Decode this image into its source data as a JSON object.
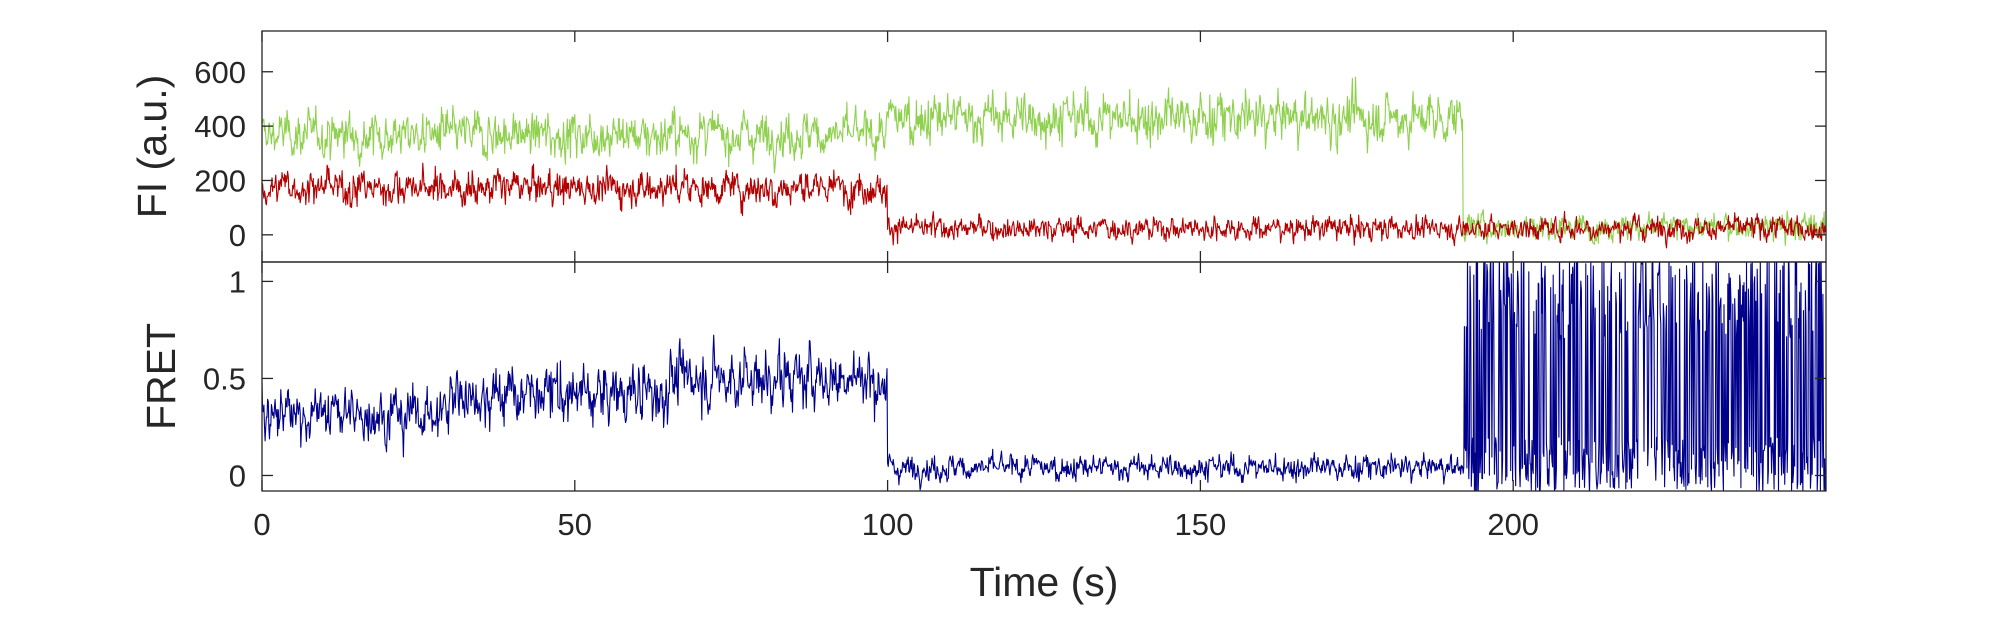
{
  "chart_data": [
    {
      "type": "line",
      "panel": "top",
      "ylabel": "FI (a.u.)",
      "xlim": [
        0,
        250
      ],
      "ylim": [
        -100,
        750
      ],
      "yticks": [
        0,
        200,
        400,
        600
      ],
      "ytick_labels": [
        "0",
        "200",
        "400",
        "600"
      ],
      "grid": false,
      "series": [
        {
          "color": "#8fd14f",
          "segments": [
            {
              "t_start": 0,
              "t_end": 100,
              "mean": 370,
              "noise": 75
            },
            {
              "t_start": 100,
              "t_end": 192,
              "mean": 430,
              "noise": 85
            },
            {
              "t_start": 192,
              "t_end": 250,
              "mean": 30,
              "noise": 45
            }
          ]
        },
        {
          "color": "#b30000",
          "segments": [
            {
              "t_start": 0,
              "t_end": 100,
              "mean": 175,
              "noise": 60
            },
            {
              "t_start": 100,
              "t_end": 192,
              "mean": 25,
              "noise": 40
            },
            {
              "t_start": 192,
              "t_end": 250,
              "mean": 25,
              "noise": 40
            }
          ]
        }
      ]
    },
    {
      "type": "line",
      "panel": "bottom",
      "xlabel": "Time (s)",
      "ylabel": "FRET",
      "xlim": [
        0,
        250
      ],
      "ylim": [
        -0.08,
        1.1
      ],
      "xticks": [
        0,
        50,
        100,
        150,
        200
      ],
      "xtick_labels": [
        "0",
        "50",
        "100",
        "150",
        "200"
      ],
      "yticks": [
        0,
        0.5,
        1
      ],
      "ytick_labels": [
        "0",
        "0.5",
        "1"
      ],
      "grid": false,
      "series": [
        {
          "color": "#00008b",
          "segments": [
            {
              "t_start": 0,
              "t_end": 30,
              "mean": 0.32,
              "noise": 0.12
            },
            {
              "t_start": 30,
              "t_end": 65,
              "mean": 0.42,
              "noise": 0.14
            },
            {
              "t_start": 65,
              "t_end": 100,
              "mean": 0.5,
              "noise": 0.14
            },
            {
              "t_start": 100,
              "t_end": 192,
              "mean": 0.04,
              "noise": 0.06
            },
            {
              "t_start": 192,
              "t_end": 250,
              "mean": 0.5,
              "noise": 0.6
            }
          ]
        }
      ]
    }
  ]
}
